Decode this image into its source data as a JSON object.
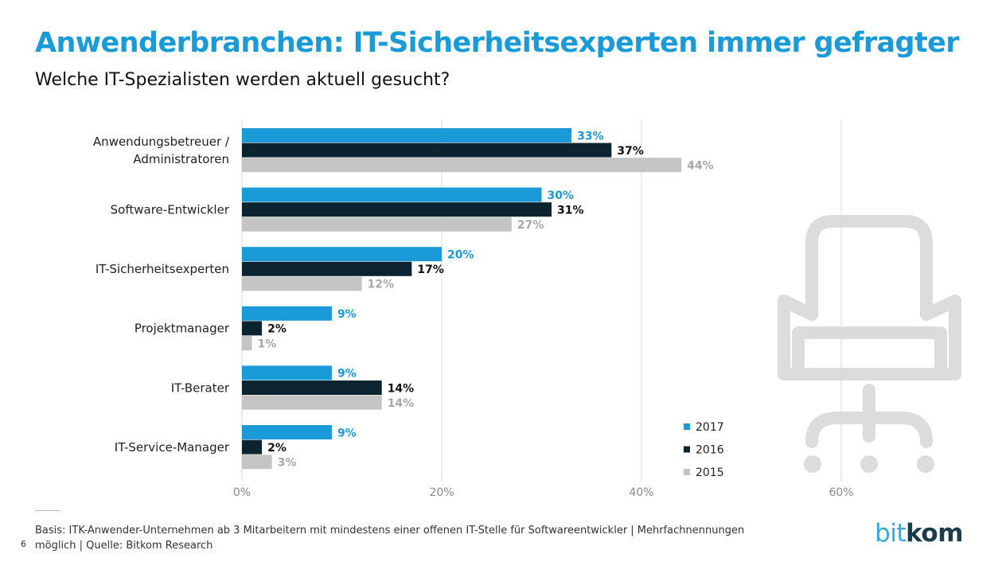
{
  "header": {
    "title": "Anwenderbranchen: IT-Sicherheitsexperten immer gefragter",
    "subtitle": "Welche IT-Spezialisten werden aktuell gesucht?"
  },
  "chart_data": {
    "type": "bar",
    "orientation": "horizontal",
    "categories": [
      "Anwendungsbetreuer / Administratoren",
      "Software-Entwickler",
      "IT-Sicherheitsexperten",
      "Projektmanager",
      "IT-Berater",
      "IT-Service-Manager"
    ],
    "series": [
      {
        "name": "2017",
        "values": [
          33,
          30,
          20,
          9,
          9,
          9
        ],
        "color": "#1a9ad6",
        "label_color": "#1a9ad6"
      },
      {
        "name": "2016",
        "values": [
          37,
          31,
          17,
          2,
          14,
          2
        ],
        "color": "#0b2430",
        "label_color": "#111111"
      },
      {
        "name": "2015",
        "values": [
          44,
          27,
          12,
          1,
          14,
          3
        ],
        "color": "#c4c4c4",
        "label_color": "#a7a7a7"
      }
    ],
    "value_suffix": "%",
    "xlim": [
      0,
      60
    ],
    "xticks": [
      0,
      20,
      40,
      60
    ],
    "xtick_labels": [
      "0%",
      "20%",
      "40%",
      "60%"
    ],
    "grid": true,
    "legend_position": "bottom-right",
    "decoration": "office-chair-icon"
  },
  "footer": {
    "note": "Basis: ITK-Anwender-Unternehmen ab 3 Mitarbeitern mit mindestens einer offenen IT-Stelle für Softwareentwickler | Mehrfachnennungen möglich | Quelle: Bitkom Research",
    "page_number": "6",
    "logo_bit": "bit",
    "logo_kom": "kom"
  }
}
